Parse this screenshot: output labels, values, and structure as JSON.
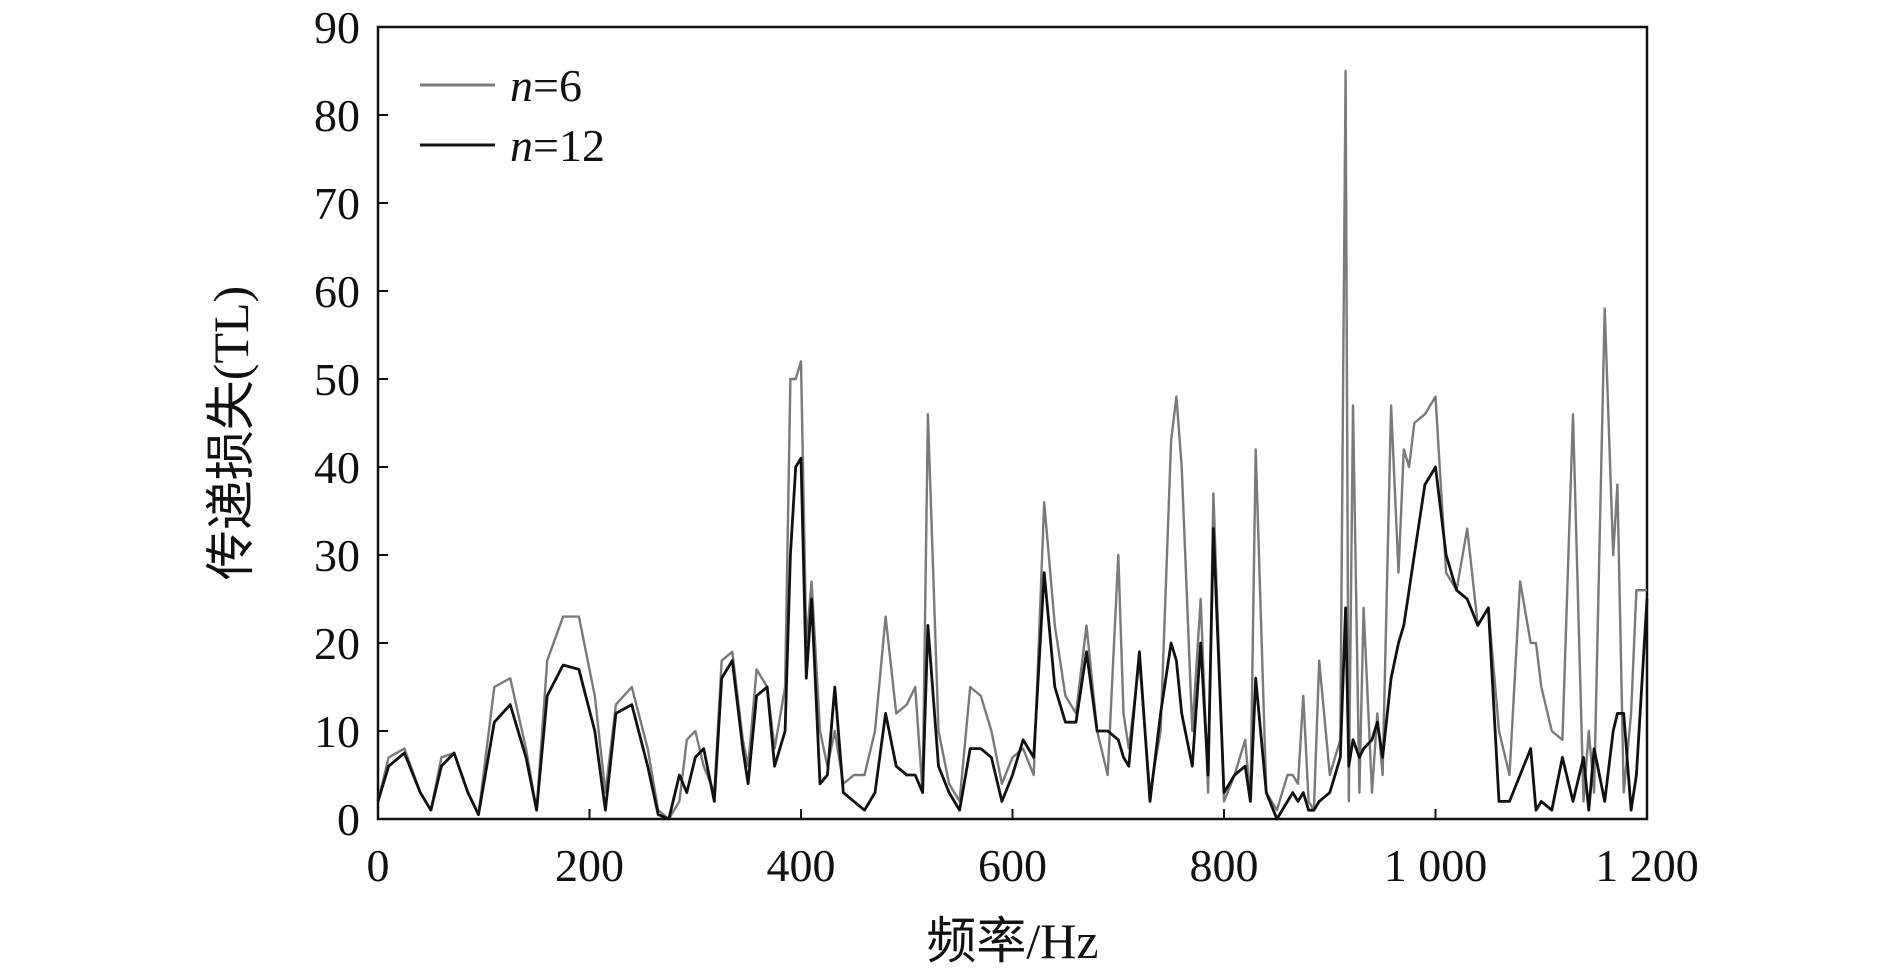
{
  "chart_data": {
    "type": "line",
    "title": "",
    "xlabel": "频率/Hz",
    "ylabel": "传递损失(TL)",
    "xlim": [
      0,
      1200
    ],
    "ylim": [
      0,
      90
    ],
    "xticks": [
      0,
      200,
      400,
      600,
      800,
      1000,
      1200
    ],
    "xtick_labels": [
      "0",
      "200",
      "400",
      "600",
      "800",
      "1 000",
      "1 200"
    ],
    "yticks": [
      0,
      10,
      20,
      30,
      40,
      50,
      60,
      70,
      80,
      90
    ],
    "ytick_labels": [
      "0",
      "10",
      "20",
      "30",
      "40",
      "50",
      "60",
      "70",
      "80",
      "90"
    ],
    "grid": false,
    "legend_position": "top-left",
    "series": [
      {
        "name": "n=6",
        "legend_italic": "n",
        "legend_rest": "=6",
        "color": "#7a7a7a",
        "x": [
          0,
          10,
          25,
          40,
          50,
          60,
          72,
          85,
          95,
          110,
          125,
          140,
          150,
          160,
          175,
          190,
          205,
          215,
          225,
          240,
          255,
          265,
          275,
          285,
          292,
          300,
          308,
          318,
          325,
          335,
          345,
          350,
          358,
          368,
          375,
          385,
          390,
          395,
          400,
          405,
          410,
          418,
          425,
          432,
          440,
          450,
          460,
          470,
          480,
          490,
          500,
          508,
          515,
          520,
          530,
          540,
          550,
          560,
          570,
          580,
          590,
          600,
          610,
          620,
          630,
          640,
          650,
          660,
          670,
          680,
          690,
          700,
          705,
          710,
          720,
          730,
          740,
          750,
          755,
          760,
          770,
          778,
          785,
          790,
          800,
          810,
          820,
          825,
          830,
          840,
          850,
          860,
          865,
          870,
          875,
          880,
          885,
          890,
          900,
          910,
          915,
          918,
          922,
          928,
          932,
          940,
          945,
          950,
          958,
          965,
          970,
          975,
          980,
          990,
          1000,
          1010,
          1020,
          1030,
          1040,
          1050,
          1060,
          1070,
          1080,
          1090,
          1095,
          1100,
          1110,
          1120,
          1130,
          1140,
          1145,
          1150,
          1160,
          1168,
          1172,
          1178,
          1185,
          1190,
          1200
        ],
        "y": [
          2,
          7,
          8,
          3,
          1,
          7,
          7.5,
          3,
          0.5,
          15,
          16,
          8,
          1,
          18,
          23,
          23,
          14,
          3,
          13,
          15,
          8,
          1,
          0,
          2,
          9,
          10,
          6,
          3,
          18,
          19,
          9,
          6,
          17,
          15,
          8,
          15,
          50,
          50,
          52,
          20,
          27,
          10,
          6,
          10,
          4,
          5,
          5,
          10,
          23,
          12,
          13,
          15,
          3,
          46,
          10,
          4,
          2,
          15,
          14,
          10,
          4,
          7,
          8,
          5,
          36,
          22,
          14,
          12,
          22,
          10,
          5,
          30,
          12,
          8,
          18,
          3,
          10,
          43,
          48,
          40,
          10,
          25,
          3,
          37,
          2,
          5,
          9,
          2,
          42,
          3,
          1,
          5,
          5,
          4,
          14,
          2,
          1,
          18,
          5,
          9,
          85,
          2,
          47,
          3,
          24,
          3,
          12,
          5,
          47,
          28,
          42,
          40,
          45,
          46,
          48,
          28,
          26,
          33,
          22,
          24,
          10,
          5,
          27,
          20,
          20,
          15,
          10,
          9,
          46,
          2,
          10,
          3,
          58,
          30,
          38,
          3,
          12,
          26,
          26
        ]
      },
      {
        "name": "n=12",
        "legend_italic": "n",
        "legend_rest": "=12",
        "color": "#111111",
        "x": [
          0,
          10,
          25,
          40,
          50,
          60,
          72,
          85,
          95,
          110,
          125,
          140,
          150,
          160,
          175,
          190,
          205,
          215,
          225,
          240,
          255,
          265,
          275,
          285,
          292,
          300,
          308,
          318,
          325,
          335,
          345,
          350,
          358,
          368,
          375,
          385,
          390,
          395,
          400,
          405,
          410,
          418,
          425,
          432,
          440,
          450,
          460,
          470,
          480,
          490,
          500,
          508,
          515,
          520,
          530,
          540,
          550,
          560,
          570,
          580,
          590,
          600,
          610,
          620,
          630,
          640,
          650,
          660,
          670,
          680,
          690,
          700,
          705,
          710,
          720,
          730,
          740,
          750,
          755,
          760,
          770,
          778,
          785,
          790,
          800,
          810,
          820,
          825,
          830,
          840,
          850,
          860,
          865,
          870,
          875,
          880,
          885,
          890,
          900,
          910,
          915,
          918,
          922,
          928,
          932,
          940,
          945,
          950,
          958,
          965,
          970,
          975,
          980,
          990,
          1000,
          1010,
          1020,
          1030,
          1040,
          1050,
          1060,
          1070,
          1080,
          1090,
          1095,
          1100,
          1110,
          1120,
          1130,
          1140,
          1145,
          1150,
          1160,
          1168,
          1172,
          1178,
          1185,
          1190,
          1200
        ],
        "y": [
          2,
          6,
          7.5,
          3,
          1,
          6,
          7.5,
          3,
          0.5,
          11,
          13,
          7,
          1,
          14,
          17.5,
          17,
          10,
          1,
          12,
          13,
          6,
          0.5,
          0,
          5,
          3,
          7,
          8,
          2,
          16,
          18,
          8,
          4,
          14,
          15,
          6,
          10,
          30,
          40,
          41,
          16,
          25,
          4,
          5,
          15,
          3,
          2,
          1,
          3,
          12,
          6,
          5,
          5,
          3,
          22,
          6,
          3,
          1,
          8,
          8,
          7,
          2,
          5,
          9,
          7,
          28,
          15,
          11,
          11,
          19,
          10,
          10,
          9,
          7,
          6,
          19,
          2,
          12,
          20,
          18,
          12,
          6,
          20,
          5,
          33,
          3,
          5,
          6,
          2,
          16,
          3,
          0,
          2,
          3,
          2,
          3,
          1,
          1,
          2,
          3,
          7,
          24,
          6,
          9,
          7,
          8,
          9,
          11,
          7,
          16,
          20,
          22,
          26,
          30,
          38,
          40,
          30,
          26,
          25,
          22,
          24,
          2,
          2,
          5,
          8,
          1,
          2,
          1,
          7,
          2,
          7,
          1,
          8,
          2,
          10,
          12,
          12,
          1,
          5,
          25
        ]
      }
    ]
  }
}
